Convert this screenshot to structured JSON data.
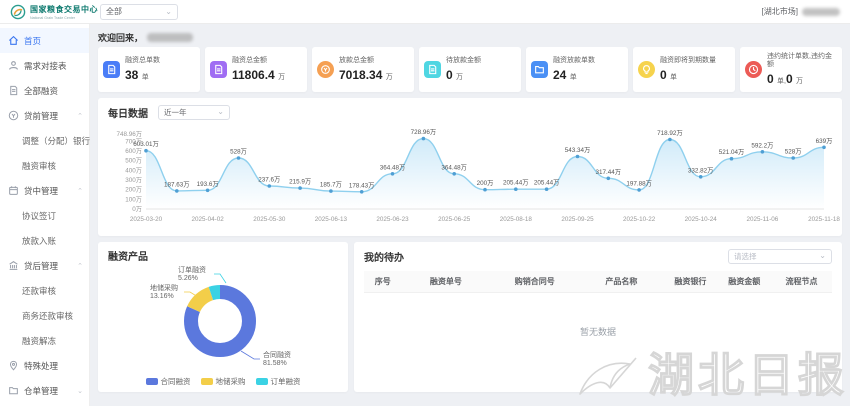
{
  "header": {
    "brand_cn": "国家粮食交易中心",
    "brand_en": "National Grain Trade Center",
    "market_select": "全部",
    "user_prefix": "[湖北市场]"
  },
  "colors": {
    "accent_blue": "#3a76f0",
    "line_blue": "#8fd0ee",
    "area_blue": "#c8e7f8",
    "point_blue": "#4f9fd4"
  },
  "sidebar": {
    "items": [
      {
        "label": "首页",
        "icon": "home-icon",
        "type": "item",
        "active": true
      },
      {
        "label": "需求对接表",
        "icon": "person-icon",
        "type": "item"
      },
      {
        "label": "全部融资",
        "icon": "document-icon",
        "type": "item"
      },
      {
        "label": "贷前管理",
        "icon": "money-icon",
        "type": "group",
        "caret": "up"
      },
      {
        "label": "调整（分配）银行",
        "type": "subitem"
      },
      {
        "label": "融资审核",
        "type": "subitem"
      },
      {
        "label": "贷中管理",
        "icon": "calendar-icon",
        "type": "group",
        "caret": "up"
      },
      {
        "label": "协议签订",
        "type": "subitem"
      },
      {
        "label": "放款入账",
        "type": "subitem"
      },
      {
        "label": "贷后管理",
        "icon": "bank-icon",
        "type": "group",
        "caret": "up"
      },
      {
        "label": "还款审核",
        "type": "subitem"
      },
      {
        "label": "商务还款审核",
        "type": "subitem"
      },
      {
        "label": "融资解冻",
        "type": "subitem"
      },
      {
        "label": "特殊处理",
        "icon": "pin-icon",
        "type": "item"
      },
      {
        "label": "仓单管理",
        "icon": "folder-icon",
        "type": "group",
        "caret": "down"
      }
    ]
  },
  "main": {
    "welcome": "欢迎回来，",
    "stat_cards": [
      {
        "label": "融资总单数",
        "value": "38",
        "unit": "单",
        "color": "#4a7df7",
        "icon": "file-icon"
      },
      {
        "label": "融资总金额",
        "value": "11806.4",
        "unit": "万",
        "color": "#a06df3",
        "icon": "file-icon"
      },
      {
        "label": "放款总金额",
        "value": "7018.34",
        "unit": "万",
        "color": "#f5a053",
        "icon": "coin-icon"
      },
      {
        "label": "待放款金额",
        "value": "0",
        "unit": "万",
        "color": "#4fd6e2",
        "icon": "file-icon"
      },
      {
        "label": "融资放款单数",
        "value": "24",
        "unit": "单",
        "color": "#4a90f5",
        "icon": "folder2-icon"
      },
      {
        "label": "融资即将到期数量",
        "value": "0",
        "unit": "单",
        "color": "#f6d34d",
        "icon": "bulb-icon"
      },
      {
        "label": "违约统计单数,违约金额",
        "value": "0",
        "unit": "单,",
        "value2": "0",
        "unit2": "万",
        "color": "#ec5b56",
        "icon": "clock-icon"
      }
    ],
    "todo_panel": {
      "title": "我的待办",
      "filter_placeholder": "请选择",
      "table_headers": [
        "序号",
        "融资单号",
        "购销合同号",
        "产品名称",
        "融资银行",
        "融资金额",
        "流程节点"
      ],
      "empty_text": "暂无数据"
    }
  },
  "chart_data": [
    {
      "type": "area",
      "title": "每日数据",
      "range_selector": "近一年",
      "y_ticks": [
        "748.96万",
        "700万",
        "600万",
        "500万",
        "400万",
        "300万",
        "200万",
        "100万",
        "0万"
      ],
      "ylim": [
        0,
        766
      ],
      "x_labels": [
        "2025-03-20",
        "2025-04-02",
        "2025-05-30",
        "2025-06-13",
        "2025-06-23",
        "2025-06-25",
        "2025-08-18",
        "2025-09-25",
        "2025-10-22",
        "2025-10-24",
        "2025-11-06",
        "2025-11-18"
      ],
      "values": [
        603.01,
        187.63,
        193.6,
        528,
        237.6,
        215.9,
        185.7,
        178.43,
        364.48,
        728.96,
        364.48,
        200,
        205.44,
        205.44,
        543.34,
        317.44,
        197.88,
        718.92,
        332.82,
        521.04,
        592.2,
        528,
        639
      ],
      "point_labels": [
        "603.01万",
        "187.63万",
        "193.6万",
        "528万",
        "237.6万",
        "215.9万",
        "185.7万",
        "178.43万",
        "364.48万",
        "728.96万",
        "364.48万",
        "200万",
        "205.44万",
        "205.44万",
        "543.34万",
        "317.44万",
        "197.88万",
        "718.92万",
        "332.82万",
        "521.04万",
        "592.2万",
        "528万",
        "639万"
      ],
      "legend_position": "none",
      "grid": false
    },
    {
      "type": "pie",
      "title": "融资产品",
      "slices": [
        {
          "name": "合同融资",
          "pct": 81.58,
          "pct_label": "81.58%",
          "color": "#5b78dd"
        },
        {
          "name": "地储采购",
          "pct": 13.16,
          "pct_label": "13.16%",
          "color": "#f3ce49"
        },
        {
          "name": "订单融资",
          "pct": 5.26,
          "pct_label": "5.26%",
          "color": "#3bd2e4"
        }
      ],
      "legend": [
        "合同融资",
        "地储采购",
        "订单融资"
      ],
      "legend_position": "bottom"
    }
  ],
  "watermark": {
    "brand": "湖北日报"
  }
}
